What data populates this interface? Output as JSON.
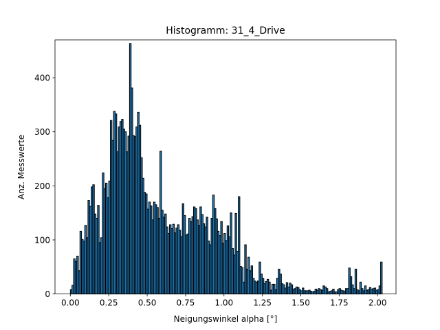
{
  "chart_data": {
    "type": "bar",
    "title": "Histogramm: 31_4_Drive",
    "xlabel": "Neigungswinkel alpha [°]",
    "ylabel": "Anz. Messwerte",
    "xlim": [
      -0.1,
      2.12
    ],
    "ylim": [
      0,
      470
    ],
    "xticks": [
      "0.00",
      "0.25",
      "0.50",
      "0.75",
      "1.00",
      "1.25",
      "1.50",
      "1.75",
      "2.00"
    ],
    "yticks": [
      "0",
      "100",
      "200",
      "300",
      "400"
    ],
    "grid": false,
    "legend": "none",
    "bar_color": "#1f77b4",
    "edge_color": "#000000",
    "x_start": 0.0,
    "x_end": 2.03,
    "values": [
      8,
      16,
      65,
      60,
      70,
      43,
      116,
      101,
      98,
      127,
      104,
      173,
      162,
      198,
      202,
      148,
      140,
      164,
      95,
      104,
      224,
      195,
      205,
      178,
      209,
      321,
      284,
      338,
      333,
      263,
      309,
      319,
      323,
      305,
      300,
      263,
      292,
      463,
      381,
      293,
      291,
      309,
      336,
      312,
      252,
      214,
      188,
      185,
      157,
      170,
      163,
      137,
      170,
      165,
      160,
      140,
      264,
      155,
      142,
      148,
      124,
      112,
      128,
      121,
      129,
      113,
      122,
      128,
      118,
      106,
      167,
      145,
      109,
      111,
      140,
      134,
      143,
      161,
      158,
      137,
      127,
      161,
      147,
      130,
      124,
      142,
      98,
      91,
      140,
      183,
      158,
      139,
      116,
      108,
      134,
      94,
      112,
      99,
      126,
      106,
      150,
      84,
      72,
      149,
      79,
      180,
      51,
      49,
      22,
      91,
      46,
      68,
      43,
      52,
      29,
      24,
      22,
      24,
      59,
      37,
      29,
      19,
      23,
      27,
      22,
      7,
      18,
      18,
      8,
      29,
      46,
      37,
      19,
      17,
      11,
      21,
      13,
      20,
      17,
      9,
      10,
      13,
      12,
      8,
      6,
      11,
      6,
      6,
      6,
      7,
      5,
      4,
      5,
      9,
      7,
      10,
      8,
      7,
      15,
      13,
      10,
      4,
      5,
      6,
      9,
      4,
      4,
      8,
      10,
      7,
      6,
      5,
      10,
      10,
      48,
      32,
      17,
      10,
      46,
      8,
      6,
      22,
      10,
      6,
      15,
      7,
      8,
      12,
      9,
      10,
      11,
      7,
      8,
      15,
      59
    ]
  }
}
